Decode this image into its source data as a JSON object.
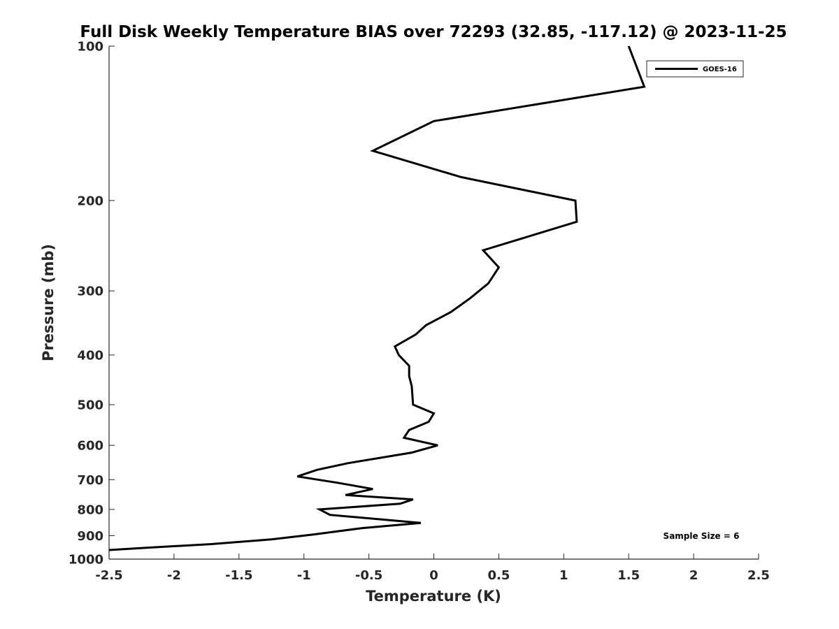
{
  "chart_data": {
    "type": "line",
    "title": "Full Disk Weekly Temperature BIAS over 72293 (32.85, -117.12) @ 2023-11-25",
    "xlabel": "Temperature (K)",
    "ylabel": "Pressure (mb)",
    "xlim": [
      -2.5,
      2.5
    ],
    "ylim": [
      100,
      1000
    ],
    "y_scale": "log",
    "y_reversed": true,
    "grid": false,
    "legend_position": "top-right",
    "x_ticks": [
      "-2.5",
      "-2",
      "-1.5",
      "-1",
      "-0.5",
      "0",
      "0.5",
      "1",
      "1.5",
      "2",
      "2.5"
    ],
    "x_tick_values": [
      -2.5,
      -2,
      -1.5,
      -1,
      -0.5,
      0,
      0.5,
      1,
      1.5,
      2,
      2.5
    ],
    "y_ticks": [
      "100",
      "200",
      "300",
      "400",
      "500",
      "600",
      "700",
      "800",
      "900",
      "1000"
    ],
    "y_tick_values": [
      100,
      200,
      300,
      400,
      500,
      600,
      700,
      800,
      900,
      1000
    ],
    "series": [
      {
        "name": "GOES-16",
        "color": "#000000",
        "points": [
          {
            "x": 1.5,
            "p": 100
          },
          {
            "x": 1.62,
            "p": 120
          },
          {
            "x": 0.0,
            "p": 140
          },
          {
            "x": -0.47,
            "p": 160
          },
          {
            "x": 0.21,
            "p": 180
          },
          {
            "x": 1.09,
            "p": 200
          },
          {
            "x": 1.1,
            "p": 220
          },
          {
            "x": 0.38,
            "p": 250
          },
          {
            "x": 0.5,
            "p": 270
          },
          {
            "x": 0.42,
            "p": 290
          },
          {
            "x": 0.28,
            "p": 310
          },
          {
            "x": 0.13,
            "p": 330
          },
          {
            "x": -0.06,
            "p": 350
          },
          {
            "x": -0.14,
            "p": 365
          },
          {
            "x": -0.3,
            "p": 385
          },
          {
            "x": -0.27,
            "p": 400
          },
          {
            "x": -0.19,
            "p": 420
          },
          {
            "x": -0.19,
            "p": 440
          },
          {
            "x": -0.17,
            "p": 460
          },
          {
            "x": -0.16,
            "p": 500
          },
          {
            "x": 0.0,
            "p": 520
          },
          {
            "x": -0.04,
            "p": 540
          },
          {
            "x": -0.19,
            "p": 560
          },
          {
            "x": -0.23,
            "p": 580
          },
          {
            "x": 0.03,
            "p": 600
          },
          {
            "x": -0.17,
            "p": 620
          },
          {
            "x": -0.66,
            "p": 650
          },
          {
            "x": -0.9,
            "p": 670
          },
          {
            "x": -1.05,
            "p": 690
          },
          {
            "x": -0.74,
            "p": 710
          },
          {
            "x": -0.47,
            "p": 730
          },
          {
            "x": -0.68,
            "p": 750
          },
          {
            "x": -0.16,
            "p": 765
          },
          {
            "x": -0.26,
            "p": 780
          },
          {
            "x": -0.88,
            "p": 800
          },
          {
            "x": -0.8,
            "p": 820
          },
          {
            "x": -0.1,
            "p": 850
          },
          {
            "x": -0.55,
            "p": 870
          },
          {
            "x": -0.92,
            "p": 895
          },
          {
            "x": -1.25,
            "p": 915
          },
          {
            "x": -1.72,
            "p": 935
          },
          {
            "x": -2.2,
            "p": 950
          },
          {
            "x": -2.5,
            "p": 960
          }
        ]
      }
    ],
    "legend": [
      {
        "label": "GOES-16",
        "color": "#000000"
      }
    ],
    "annotation": "Sample Size = 6"
  }
}
